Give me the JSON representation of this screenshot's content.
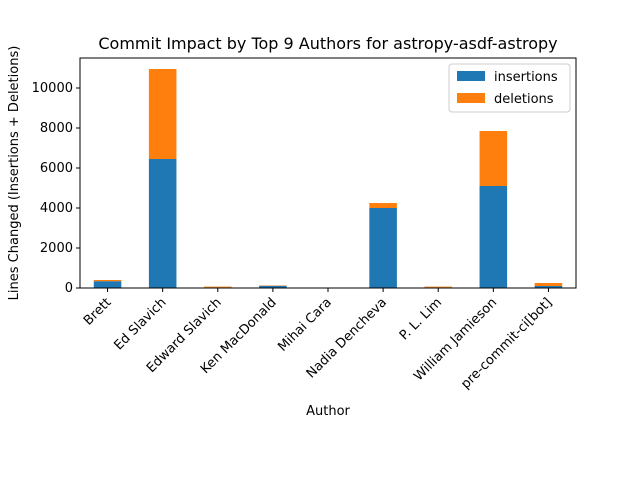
{
  "chart_data": {
    "type": "bar",
    "stacked": true,
    "title": "Commit Impact by Top 9 Authors for astropy-asdf-astropy",
    "xlabel": "Author",
    "ylabel": "Lines Changed (Insertions + Deletions)",
    "categories": [
      "Brett",
      "Ed Slavich",
      "Edward Slavich",
      "Ken MacDonald",
      "Mihai Cara",
      "Nadia Dencheva",
      "P. L. Lim",
      "William Jamieson",
      "pre-commit-ci[bot]"
    ],
    "series": [
      {
        "name": "insertions",
        "color": "#1f77b4",
        "values": [
          340,
          6450,
          30,
          110,
          5,
          4000,
          30,
          5100,
          100
        ]
      },
      {
        "name": "deletions",
        "color": "#ff7f0e",
        "values": [
          60,
          4500,
          40,
          20,
          5,
          250,
          40,
          2750,
          150
        ]
      }
    ],
    "ylim": [
      0,
      11500
    ],
    "yticks": [
      0,
      2000,
      4000,
      6000,
      8000,
      10000
    ],
    "grid": false,
    "legend_position": "top-right"
  }
}
